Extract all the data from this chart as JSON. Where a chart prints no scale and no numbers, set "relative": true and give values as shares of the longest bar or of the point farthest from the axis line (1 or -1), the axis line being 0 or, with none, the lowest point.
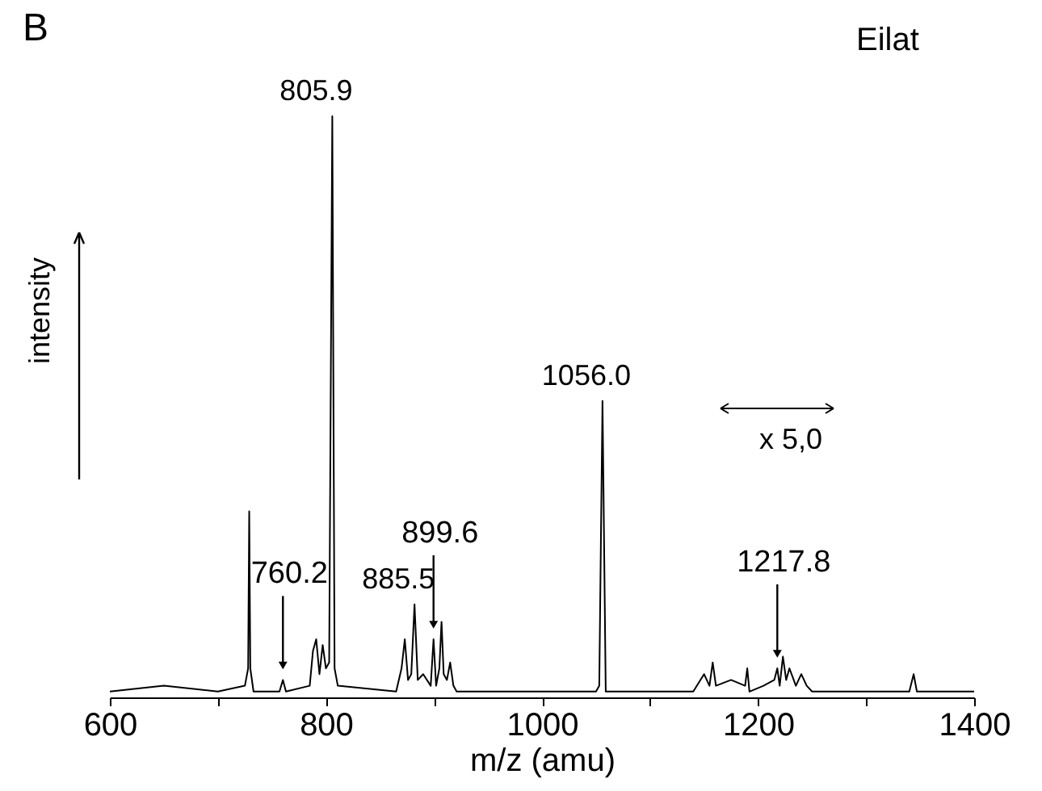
{
  "chart_data": {
    "type": "line",
    "title": "Eilat",
    "xlabel": "m/z (amu)",
    "ylabel": "intensity",
    "relative": true,
    "xlim": [
      600,
      1400
    ],
    "xticks": [
      600,
      {
        "value": 700,
        "label": null
      },
      800,
      {
        "value": 900,
        "label": null
      },
      1000,
      {
        "value": 1100,
        "label": null
      },
      1200,
      {
        "value": 1300,
        "label": null
      },
      1400
    ],
    "x": [
      600,
      650,
      700,
      725,
      728,
      729,
      730,
      733,
      757,
      760.2,
      763,
      785,
      788,
      791,
      794,
      797,
      800,
      803,
      805.9,
      808,
      811,
      865,
      870,
      873,
      876,
      879,
      882,
      885,
      890,
      897,
      899.6,
      902,
      905,
      907,
      909,
      912,
      915,
      918,
      921,
      1050,
      1053,
      1056,
      1059,
      1140,
      1150,
      1155,
      1158,
      1161,
      1175,
      1188,
      1190,
      1192,
      1205,
      1215,
      1217.8,
      1220,
      1223,
      1226,
      1229,
      1235,
      1240,
      1245,
      1250,
      1340,
      1344,
      1347,
      1400
    ],
    "series": [
      {
        "color": "#000000",
        "values": [
          0.01,
          0.02,
          0.01,
          0.02,
          0.05,
          0.32,
          0.05,
          0.01,
          0.01,
          0.03,
          0.01,
          0.02,
          0.08,
          0.1,
          0.04,
          0.09,
          0.05,
          0.06,
          1,
          0.05,
          0.02,
          0.01,
          0.05,
          0.1,
          0.03,
          0.04,
          0.16,
          0.03,
          0.04,
          0.02,
          0.1,
          0.02,
          0.05,
          0.13,
          0.04,
          0.03,
          0.06,
          0.02,
          0.01,
          0.01,
          0.02,
          0.51,
          0.01,
          0.01,
          0.04,
          0.02,
          0.06,
          0.02,
          0.03,
          0.02,
          0.05,
          0.01,
          0.02,
          0.03,
          0.05,
          0.02,
          0.07,
          0.03,
          0.05,
          0.02,
          0.04,
          0.02,
          0.01,
          0.01,
          0.04,
          0.01,
          0.01
        ]
      }
    ],
    "annotations": [
      "B",
      "x 5,0",
      {
        "text": "805.9",
        "x": 805.9,
        "y": 1
      },
      {
        "text": "760.2",
        "x": 760.2,
        "y": 0.03
      },
      {
        "text": "885.5",
        "x": 882,
        "y": 0.16
      },
      {
        "text": "899.6",
        "x": 899.6,
        "y": 0.1
      },
      {
        "text": "1056.0",
        "x": 1056,
        "y": 0.51
      },
      {
        "text": "1217.8",
        "x": 1217.8,
        "y": 0.05
      }
    ],
    "grid": false,
    "marker": "none",
    "line_style": "solid"
  }
}
